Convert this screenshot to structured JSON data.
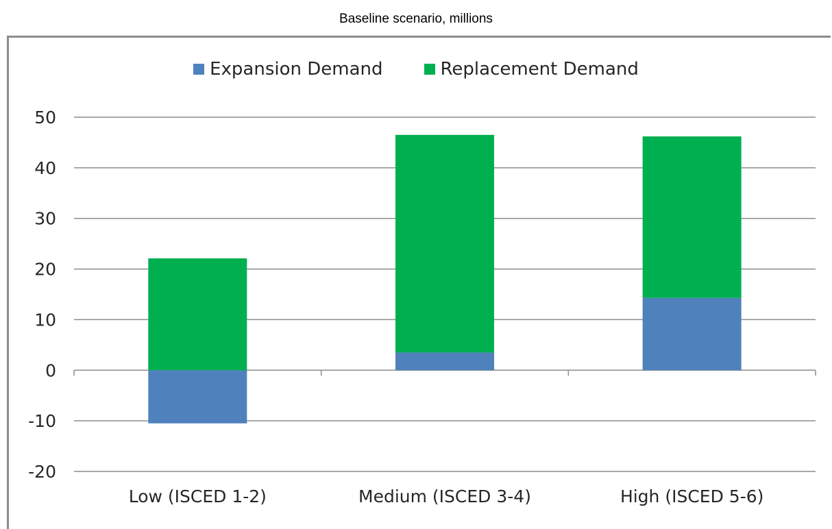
{
  "chart_data": {
    "type": "bar",
    "stacked": true,
    "title": "Baseline scenario, millions",
    "xlabel": "",
    "ylabel": "",
    "categories": [
      "Low (ISCED 1-2)",
      "Medium (ISCED 3-4)",
      "High (ISCED 5-6)"
    ],
    "series": [
      {
        "name": "Expansion Demand",
        "color": "#4f81bd",
        "values": [
          -10.5,
          3.5,
          14.3
        ]
      },
      {
        "name": "Replacement Demand",
        "color": "#00b050",
        "values": [
          22.1,
          43.0,
          31.9
        ]
      }
    ],
    "ylim": [
      -20,
      50
    ],
    "yticks": [
      -20,
      -10,
      0,
      10,
      20,
      30,
      40,
      50
    ],
    "grid": true,
    "legend": "top-center"
  }
}
